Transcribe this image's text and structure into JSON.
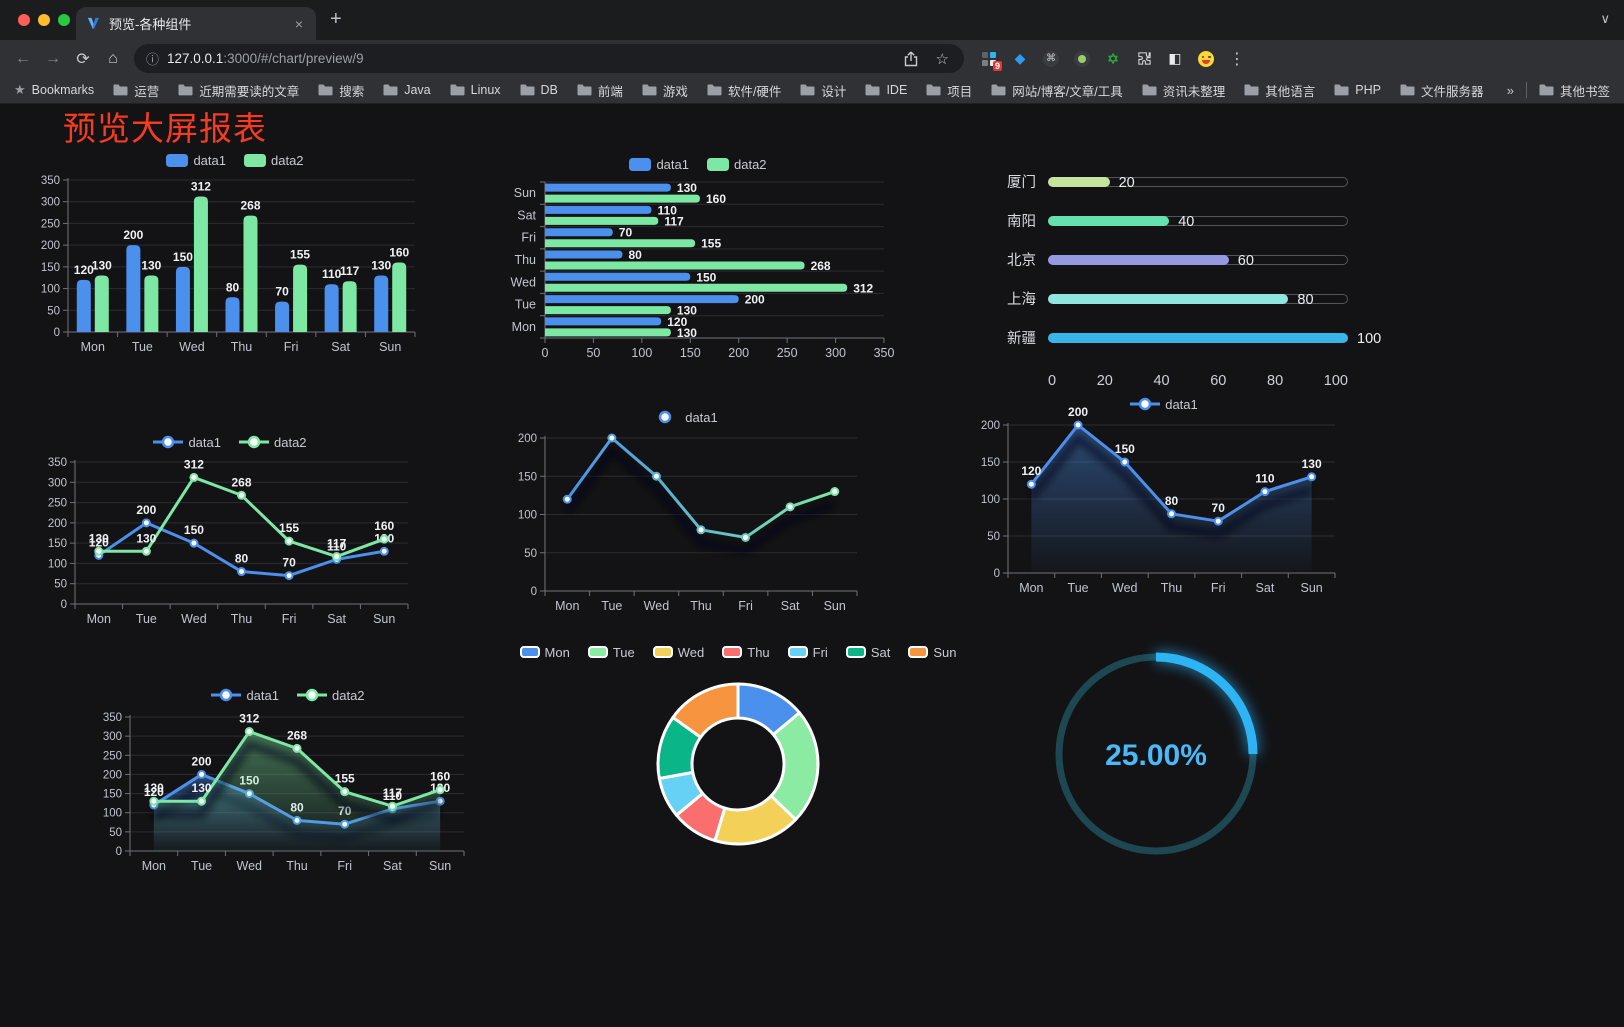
{
  "browser": {
    "tab_title": "预览-各种组件",
    "url_host": "127.0.0.1",
    "url_rest": ":3000/#/chart/preview/9",
    "bookmarks_label": "Bookmarks",
    "bookmarks": [
      "运营",
      "近期需要读的文章",
      "搜索",
      "Java",
      "Linux",
      "DB",
      "前端",
      "游戏",
      "软件/硬件",
      "设计",
      "IDE",
      "项目",
      "网站/博客/文章/工具",
      "资讯未整理",
      "其他语言",
      "PHP",
      "文件服务器"
    ],
    "overflow": "»",
    "other_bookmarks": "其他书签",
    "extension_badge": "9"
  },
  "icons": {
    "close": "×",
    "new_tab": "+",
    "chevron": "∨",
    "back": "←",
    "forward": "→",
    "reload": "⟳",
    "home": "⌂",
    "info": "ⓘ",
    "star": "☆",
    "menu": "⋮",
    "bookmarks_star": "★",
    "kite": "◆",
    "command": "⌘",
    "hex_star": "✡",
    "half_square": "◧"
  },
  "page": {
    "title": "预览大屏报表",
    "title_color": "#f53b20",
    "accent_blue": "#4a90ec",
    "accent_green": "#7ce8a4"
  },
  "chart_data": [
    {
      "id": "grouped-bar",
      "type": "bar",
      "categories": [
        "Mon",
        "Tue",
        "Wed",
        "Thu",
        "Fri",
        "Sat",
        "Sun"
      ],
      "series": [
        {
          "name": "data1",
          "color": "#4a90ec",
          "values": [
            120,
            200,
            150,
            80,
            70,
            110,
            130
          ]
        },
        {
          "name": "data2",
          "color": "#7ce8a4",
          "values": [
            130,
            130,
            312,
            268,
            155,
            117,
            160
          ]
        }
      ],
      "ylim": [
        0,
        350
      ],
      "yticks": [
        0,
        50,
        100,
        150,
        200,
        250,
        300,
        350
      ],
      "legend": "rect",
      "labels": true
    },
    {
      "id": "horizontal-bar",
      "type": "hbar",
      "categories": [
        "Mon",
        "Tue",
        "Wed",
        "Thu",
        "Fri",
        "Sat",
        "Sun"
      ],
      "series": [
        {
          "name": "data1",
          "color": "#4a90ec",
          "values": [
            120,
            200,
            150,
            80,
            70,
            110,
            130
          ]
        },
        {
          "name": "data2",
          "color": "#7ce8a4",
          "values": [
            130,
            130,
            312,
            268,
            155,
            117,
            160
          ]
        }
      ],
      "xlim": [
        0,
        350
      ],
      "xticks": [
        0,
        50,
        100,
        150,
        200,
        250,
        300,
        350
      ],
      "legend": "rect",
      "labels": true
    },
    {
      "id": "progress-bars",
      "type": "progress",
      "max": 100,
      "axis": [
        0,
        20,
        40,
        60,
        80,
        100
      ],
      "rows": [
        {
          "label": "厦门",
          "value": 20,
          "color": "#c4e59b"
        },
        {
          "label": "南阳",
          "value": 40,
          "color": "#63e2ae"
        },
        {
          "label": "北京",
          "value": 60,
          "color": "#9599e2"
        },
        {
          "label": "上海",
          "value": 80,
          "color": "#8fe6e0"
        },
        {
          "label": "新疆",
          "value": 100,
          "color": "#39b3e8"
        }
      ]
    },
    {
      "id": "line-two-series",
      "type": "line",
      "categories": [
        "Mon",
        "Tue",
        "Wed",
        "Thu",
        "Fri",
        "Sat",
        "Sun"
      ],
      "series": [
        {
          "name": "data1",
          "color": "#4a90ec",
          "values": [
            120,
            200,
            150,
            80,
            70,
            110,
            130
          ]
        },
        {
          "name": "data2",
          "color": "#7ce8a4",
          "values": [
            130,
            130,
            312,
            268,
            155,
            117,
            160
          ]
        }
      ],
      "ylim": [
        0,
        350
      ],
      "yticks": [
        0,
        50,
        100,
        150,
        200,
        250,
        300,
        350
      ],
      "legend": "line",
      "labels": true
    },
    {
      "id": "line-gradient",
      "type": "line",
      "categories": [
        "Mon",
        "Tue",
        "Wed",
        "Thu",
        "Fri",
        "Sat",
        "Sun"
      ],
      "series": [
        {
          "name": "data1",
          "gradient": [
            "#4a90ec",
            "#7ce8a4"
          ],
          "values": [
            120,
            200,
            150,
            80,
            70,
            110,
            130
          ]
        }
      ],
      "ylim": [
        0,
        200
      ],
      "yticks": [
        0,
        50,
        100,
        150,
        200
      ],
      "legend": "line",
      "labels": false,
      "shadow": true
    },
    {
      "id": "area-single",
      "type": "line",
      "categories": [
        "Mon",
        "Tue",
        "Wed",
        "Thu",
        "Fri",
        "Sat",
        "Sun"
      ],
      "series": [
        {
          "name": "data1",
          "color": "#4a90ec",
          "area": true,
          "values": [
            120,
            200,
            150,
            80,
            70,
            110,
            130
          ]
        }
      ],
      "ylim": [
        0,
        200
      ],
      "yticks": [
        0,
        50,
        100,
        150,
        200
      ],
      "legend": "line",
      "labels": true,
      "shadow": true
    },
    {
      "id": "area-two-series",
      "type": "line",
      "categories": [
        "Mon",
        "Tue",
        "Wed",
        "Thu",
        "Fri",
        "Sat",
        "Sun"
      ],
      "series": [
        {
          "name": "data1",
          "color": "#4a90ec",
          "area": true,
          "values": [
            120,
            200,
            150,
            80,
            70,
            110,
            130
          ]
        },
        {
          "name": "data2",
          "color": "#7ce8a4",
          "area": true,
          "values": [
            130,
            130,
            312,
            268,
            155,
            117,
            160
          ]
        }
      ],
      "ylim": [
        0,
        350
      ],
      "yticks": [
        0,
        50,
        100,
        150,
        200,
        250,
        300,
        350
      ],
      "legend": "line",
      "labels": true,
      "shadow": true
    },
    {
      "id": "donut",
      "type": "pie",
      "categories": [
        "Mon",
        "Tue",
        "Wed",
        "Thu",
        "Fri",
        "Sat",
        "Sun"
      ],
      "values": [
        120,
        200,
        150,
        80,
        70,
        110,
        130
      ],
      "colors": [
        "#4a90ec",
        "#8ceba3",
        "#f3d158",
        "#fa6e6e",
        "#66d0f5",
        "#0ab587",
        "#f79440"
      ],
      "border_color": "#ffffff",
      "legend": "pie"
    },
    {
      "id": "gauge",
      "type": "gauge",
      "value": 25,
      "label": "25.00%",
      "color": "#2db4f5",
      "track_color": "#1d4852",
      "text_color": "#49b9f7"
    }
  ]
}
